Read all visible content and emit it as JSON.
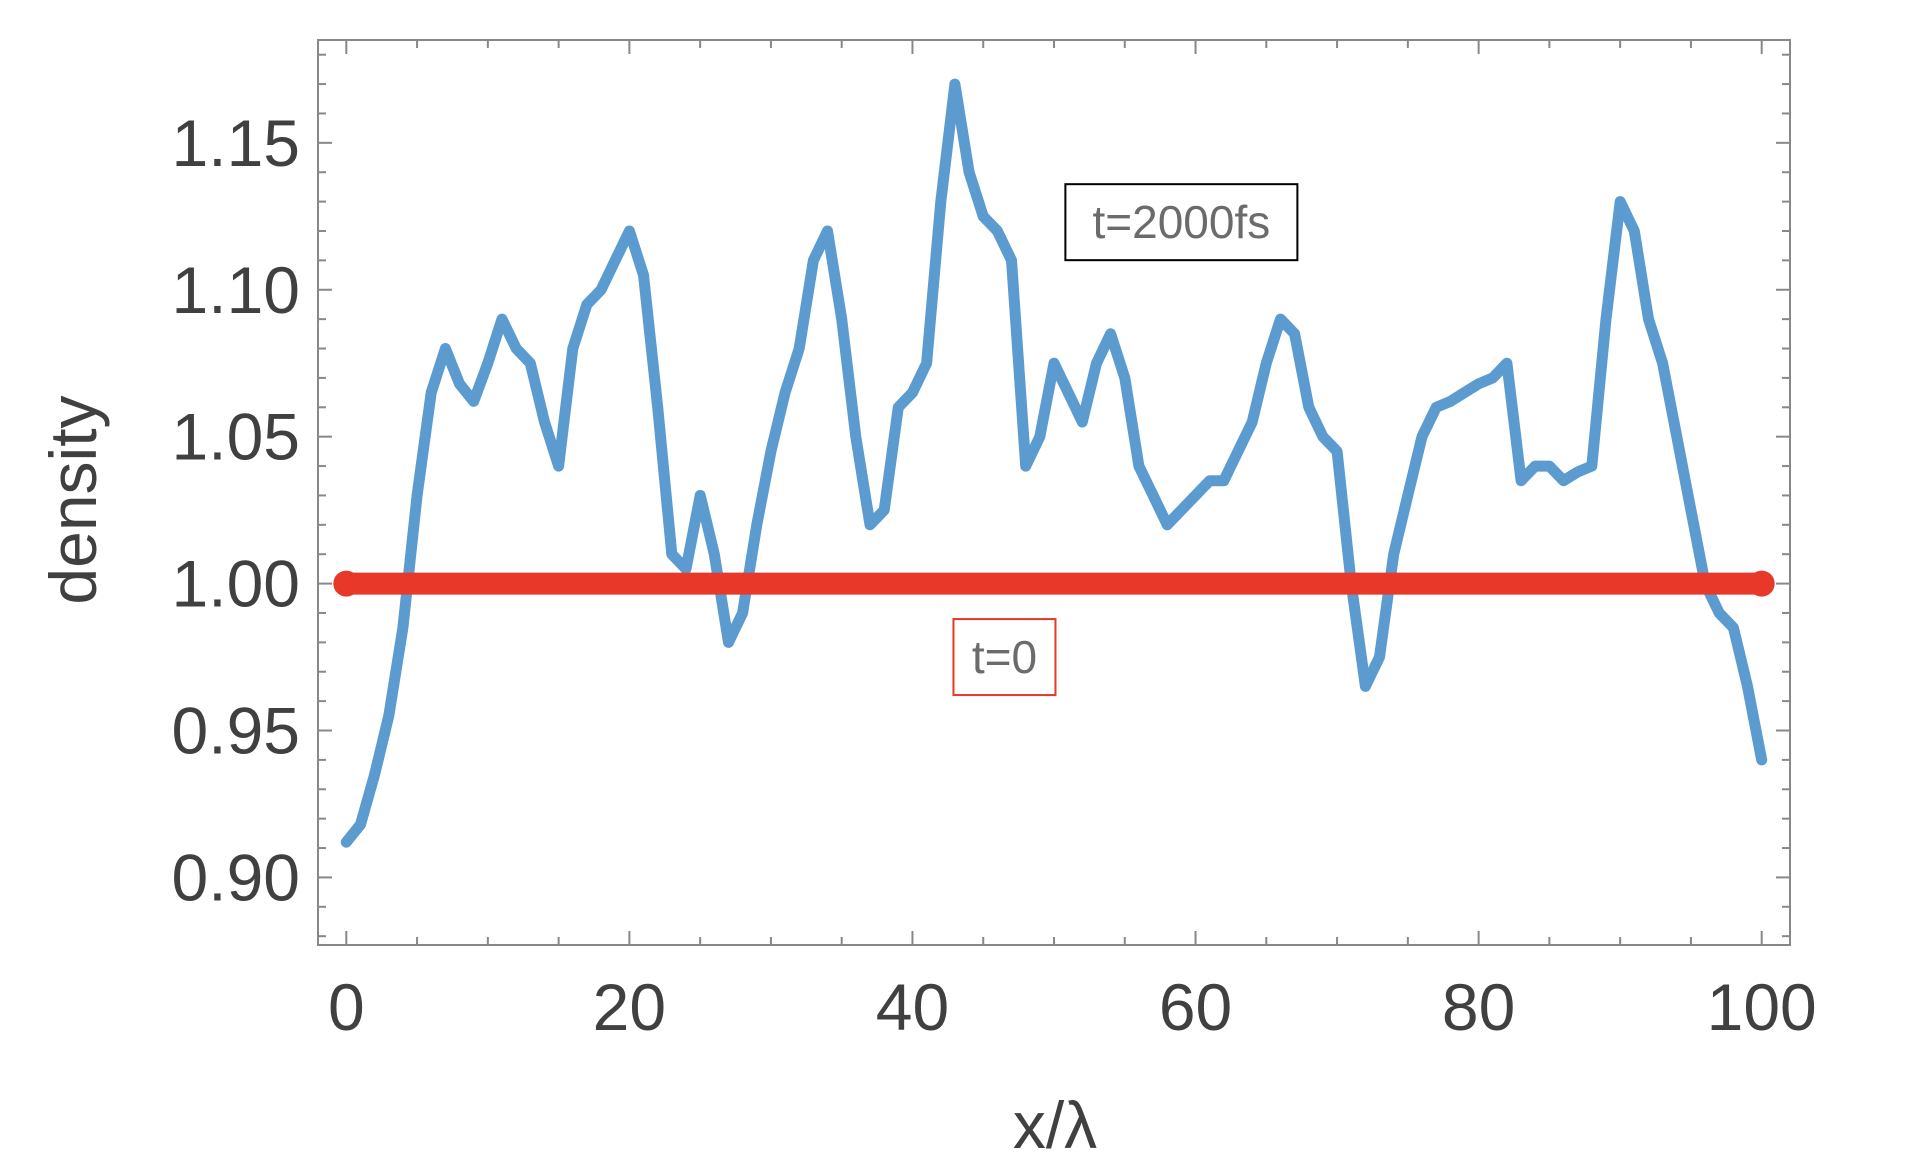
{
  "chart_data": {
    "type": "line",
    "title": "",
    "xlabel": "x/λ",
    "ylabel": "density",
    "xlim": [
      -2,
      102
    ],
    "ylim": [
      0.877,
      1.185
    ],
    "x_ticks": [
      0,
      20,
      40,
      60,
      80,
      100
    ],
    "x_tick_labels": [
      "0",
      "20",
      "40",
      "60",
      "80",
      "100"
    ],
    "y_ticks": [
      0.9,
      0.95,
      1.0,
      1.05,
      1.1,
      1.15
    ],
    "y_tick_labels": [
      "0.90",
      "0.95",
      "1.00",
      "1.05",
      "1.10",
      "1.15"
    ],
    "grid": false,
    "series": [
      {
        "color": "#5b9bd0",
        "x": [
          0,
          1,
          2,
          3,
          4,
          5,
          6,
          7,
          8,
          9,
          10,
          11,
          12,
          13,
          14,
          15,
          16,
          17,
          18,
          19,
          20,
          21,
          22,
          23,
          24,
          25,
          26,
          27,
          28,
          29,
          30,
          31,
          32,
          33,
          34,
          35,
          36,
          37,
          38,
          39,
          40,
          41,
          42,
          43,
          44,
          45,
          46,
          47,
          48,
          49,
          50,
          51,
          52,
          53,
          54,
          55,
          56,
          57,
          58,
          59,
          60,
          61,
          62,
          63,
          64,
          65,
          66,
          67,
          68,
          69,
          70,
          71,
          72,
          73,
          74,
          75,
          76,
          77,
          78,
          79,
          80,
          81,
          82,
          83,
          84,
          85,
          86,
          87,
          88,
          89,
          90,
          91,
          92,
          93,
          94,
          95,
          96,
          97,
          98,
          99,
          100
        ],
        "y": [
          0.912,
          0.918,
          0.935,
          0.955,
          0.985,
          1.03,
          1.065,
          1.08,
          1.068,
          1.062,
          1.075,
          1.09,
          1.08,
          1.075,
          1.055,
          1.04,
          1.08,
          1.095,
          1.1,
          1.11,
          1.12,
          1.105,
          1.06,
          1.01,
          1.005,
          1.03,
          1.01,
          0.98,
          0.99,
          1.02,
          1.045,
          1.065,
          1.08,
          1.11,
          1.12,
          1.09,
          1.05,
          1.02,
          1.025,
          1.06,
          1.065,
          1.075,
          1.13,
          1.17,
          1.14,
          1.125,
          1.12,
          1.11,
          1.04,
          1.05,
          1.075,
          1.065,
          1.055,
          1.075,
          1.085,
          1.07,
          1.04,
          1.03,
          1.02,
          1.025,
          1.03,
          1.035,
          1.035,
          1.045,
          1.055,
          1.075,
          1.09,
          1.085,
          1.06,
          1.05,
          1.045,
          1.0,
          0.965,
          0.975,
          1.01,
          1.03,
          1.05,
          1.06,
          1.062,
          1.065,
          1.068,
          1.07,
          1.075,
          1.035,
          1.04,
          1.04,
          1.035,
          1.038,
          1.04,
          1.09,
          1.13,
          1.12,
          1.09,
          1.075,
          1.05,
          1.025,
          1.0,
          0.99,
          0.985,
          0.965,
          0.94
        ]
      },
      {
        "color": "#e8382a",
        "x": [
          0,
          100
        ],
        "y": [
          1.0,
          1.0
        ]
      }
    ],
    "annotations": [
      {
        "text": "t=2000fs",
        "x": 59,
        "y": 1.123,
        "box_color": "#000000"
      },
      {
        "text": "t=0",
        "x": 46.5,
        "y": 0.975,
        "box_color": "#e8382a"
      }
    ]
  }
}
